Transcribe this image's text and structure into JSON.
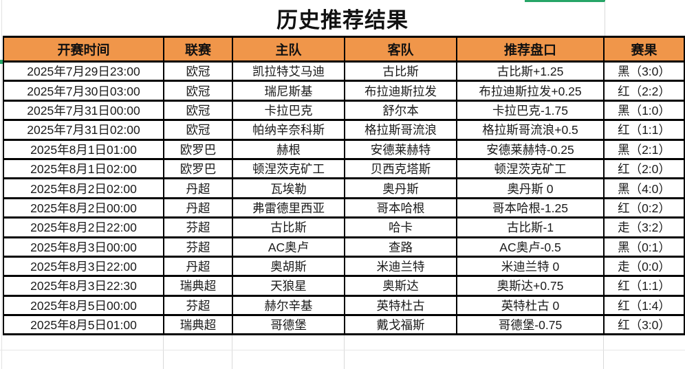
{
  "title": "历史推荐结果",
  "colors": {
    "header_bg": "#F0964A",
    "cell_border": "#000000",
    "result_black": "#1A1A1A",
    "result_red": "#B03226",
    "result_push": "#E0792F",
    "selection_green": "#27A567",
    "faint_grid": "#D9D9D9"
  },
  "table": {
    "columns": [
      {
        "key": "time",
        "label": "开赛时间"
      },
      {
        "key": "league",
        "label": "联赛"
      },
      {
        "key": "home",
        "label": "主队"
      },
      {
        "key": "away",
        "label": "客队"
      },
      {
        "key": "handicap",
        "label": "推荐盘口"
      },
      {
        "key": "result",
        "label": "赛果"
      }
    ],
    "rows": [
      {
        "time": "2025年7月29日23:00",
        "league": "欧冠",
        "home": "凯拉特艾马迪",
        "away": "古比斯",
        "handicap": "古比斯+1.25",
        "result": "黑（3:0）",
        "result_type": "black"
      },
      {
        "time": "2025年7月30日03:00",
        "league": "欧冠",
        "home": "瑞尼斯基",
        "away": "布拉迪斯拉发",
        "handicap": "布拉迪斯拉发+0.25",
        "result": "红（2:2）",
        "result_type": "red"
      },
      {
        "time": "2025年7月31日00:00",
        "league": "欧冠",
        "home": "卡拉巴克",
        "away": "舒尔本",
        "handicap": "卡拉巴克-1.75",
        "result": "黑（1:0）",
        "result_type": "black"
      },
      {
        "time": "2025年7月31日02:00",
        "league": "欧冠",
        "home": "帕纳辛奈科斯",
        "away": "格拉斯哥流浪",
        "handicap": "格拉斯哥流浪+0.5",
        "result": "红（1:1）",
        "result_type": "red"
      },
      {
        "time": "2025年8月1日01:00",
        "league": "欧罗巴",
        "home": "赫根",
        "away": "安德莱赫特",
        "handicap": "安德莱赫特-0.25",
        "result": "黑（2:1）",
        "result_type": "black"
      },
      {
        "time": "2025年8月1日02:00",
        "league": "欧罗巴",
        "home": "顿涅茨克矿工",
        "away": "贝西克塔斯",
        "handicap": "顿涅茨克矿工",
        "result": "红（2:0）",
        "result_type": "red"
      },
      {
        "time": "2025年8月2日02:00",
        "league": "丹超",
        "home": "瓦埃勒",
        "away": "奥丹斯",
        "handicap": "奥丹斯 0",
        "result": "黑（4:0）",
        "result_type": "black"
      },
      {
        "time": "2025年8月2日00:00",
        "league": "丹超",
        "home": "弗雷德里西亚",
        "away": "哥本哈根",
        "handicap": "哥本哈根-1.25",
        "result": "红（0:2）",
        "result_type": "red"
      },
      {
        "time": "2025年8月2日22:00",
        "league": "芬超",
        "home": "古比斯",
        "away": "哈卡",
        "handicap": "古比斯-1",
        "result": "走（3:2）",
        "result_type": "push"
      },
      {
        "time": "2025年8月3日00:00",
        "league": "芬超",
        "home": "AC奥卢",
        "away": "查路",
        "handicap": "AC奥卢-0.5",
        "result": "黑（0:1）",
        "result_type": "black"
      },
      {
        "time": "2025年8月3日22:00",
        "league": "丹超",
        "home": "奥胡斯",
        "away": "米迪兰特",
        "handicap": "米迪兰特 0",
        "result": "走（0:0）",
        "result_type": "push"
      },
      {
        "time": "2025年8月3日22:30",
        "league": "瑞典超",
        "home": "天狼星",
        "away": "奥斯达",
        "handicap": "奥斯达+0.75",
        "result": "红（1:1）",
        "result_type": "red"
      },
      {
        "time": "2025年8月5日00:00",
        "league": "芬超",
        "home": "赫尔辛基",
        "away": "英特杜古",
        "handicap": "英特杜古 0",
        "result": "红（1:4）",
        "result_type": "red"
      },
      {
        "time": "2025年8月5日01:00",
        "league": "瑞典超",
        "home": "哥德堡",
        "away": "戴戈福斯",
        "handicap": "哥德堡-0.75",
        "result": "红（3:0）",
        "result_type": "red"
      }
    ]
  }
}
